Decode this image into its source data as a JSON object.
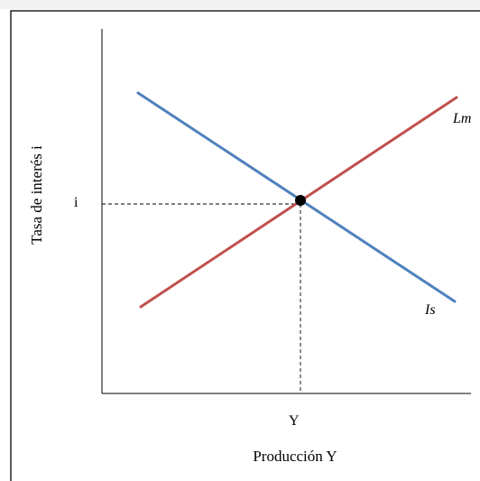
{
  "diagram": {
    "y_axis_label": "Tasa de interés i",
    "x_axis_label": "Producción Y",
    "equilibrium_y_tick": "i",
    "equilibrium_x_tick": "Y",
    "curves": [
      {
        "label": "Lm",
        "color": "#c0504d"
      },
      {
        "label": "Is",
        "color": "#4f81bd"
      }
    ],
    "equilibrium_point_color": "#000000",
    "guide_line_color": "#000000",
    "background_band_color": "#f2f2f2"
  }
}
